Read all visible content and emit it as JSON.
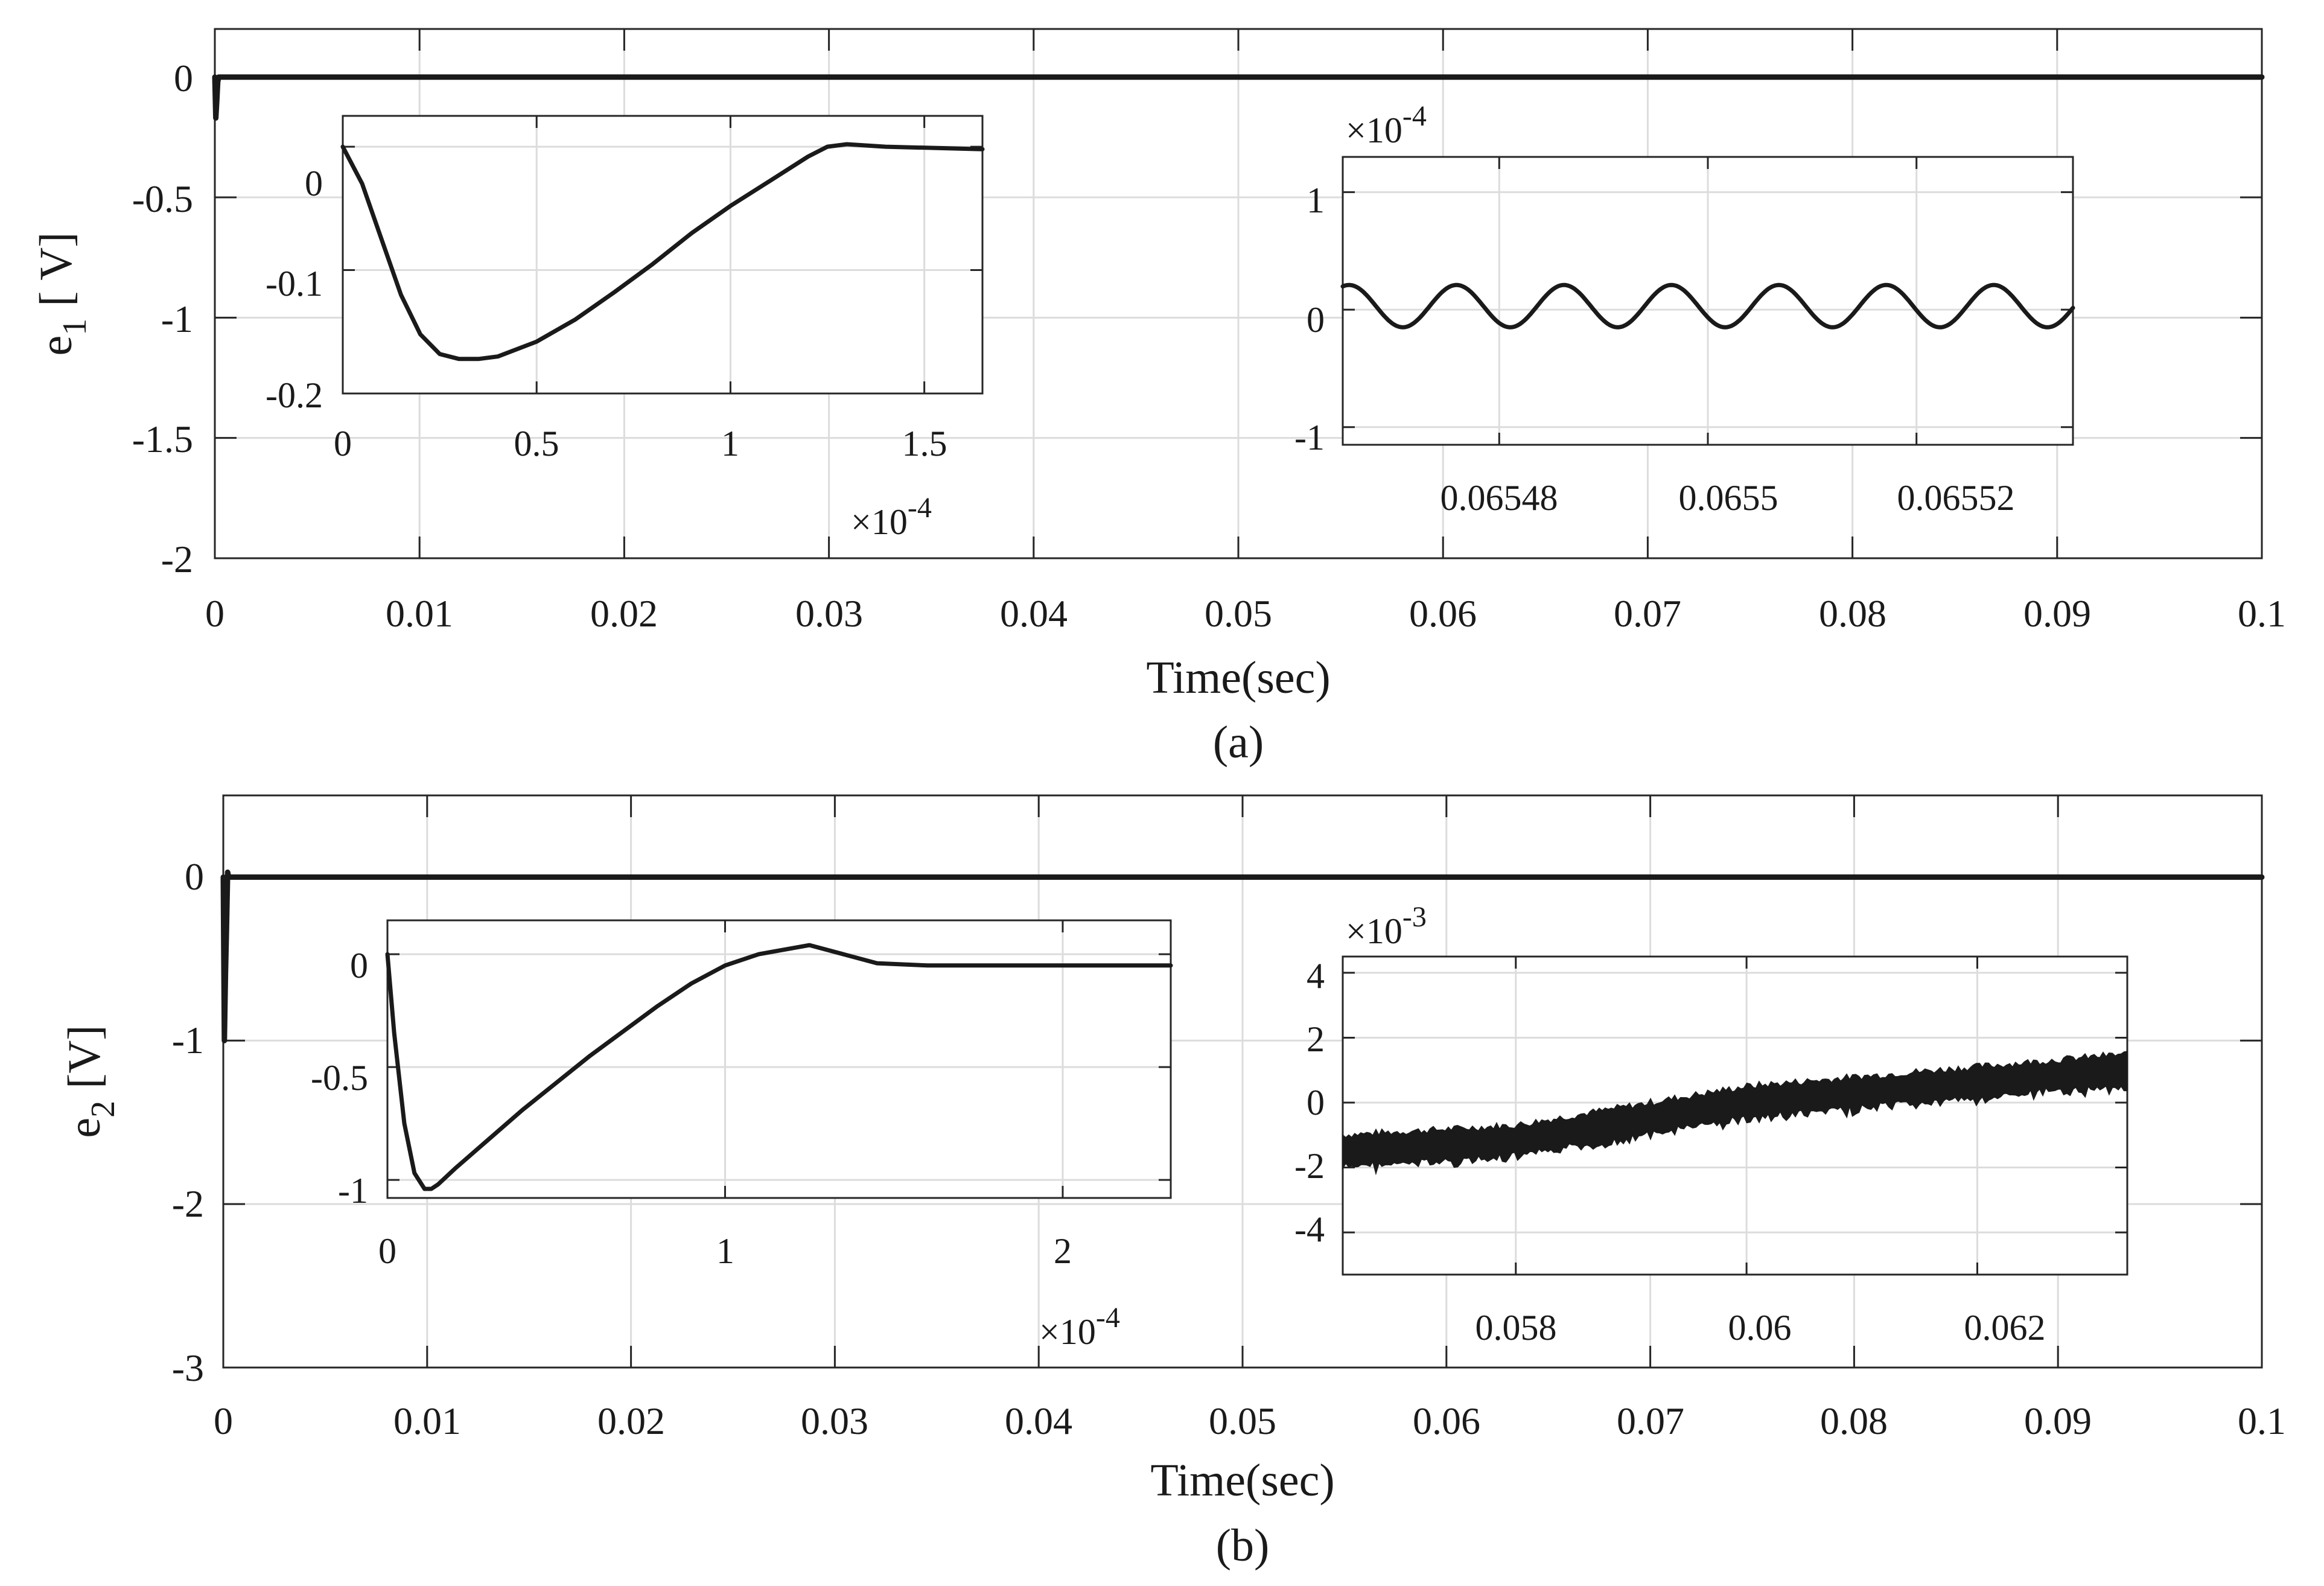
{
  "chart_data": [
    {
      "type": "line",
      "panel": "main",
      "caption": "(a)",
      "xlabel": "Time(sec)",
      "ylabel": {
        "base": "e",
        "sub": "1",
        "unit": "[ V]"
      },
      "xlim": [
        0,
        0.1
      ],
      "ylim": [
        -2,
        0.2
      ],
      "xticks": [
        0,
        0.01,
        0.02,
        0.03,
        0.04,
        0.05,
        0.06,
        0.07,
        0.08,
        0.09,
        0.1
      ],
      "xtick_labels": [
        "0",
        "0.01",
        "0.02",
        "0.03",
        "0.04",
        "0.05",
        "0.06",
        "0.07",
        "0.08",
        "0.09",
        "0.1"
      ],
      "yticks": [
        0,
        -0.5,
        -1,
        -1.5,
        -2
      ],
      "ytick_labels": [
        "0",
        "-0.5",
        "-1",
        "-1.5",
        "-2"
      ],
      "grid": true,
      "series": [
        {
          "name": "e1",
          "x": [
            0,
            3e-05,
            8e-05,
            0.00013,
            0.00016,
            0.0002,
            0.1
          ],
          "y": [
            0,
            -0.17,
            -0.1,
            -0.02,
            0,
            0,
            0
          ]
        }
      ]
    },
    {
      "type": "line",
      "panel": "inset-left",
      "xlim": [
        0,
        0.000165
      ],
      "ylim": [
        -0.2,
        0.025
      ],
      "xticks": [
        0,
        5e-05,
        0.0001,
        0.00015
      ],
      "xtick_labels": [
        "0",
        "0.5",
        "1",
        "1.5"
      ],
      "x_multiplier": {
        "base": "×10",
        "exp": "-4"
      },
      "yticks": [
        0,
        -0.1,
        -0.2
      ],
      "ytick_labels": [
        "0",
        "-0.1",
        "-0.2"
      ],
      "grid": true,
      "series": [
        {
          "name": "e1",
          "x": [
            0,
            5e-06,
            1e-05,
            1.5e-05,
            2e-05,
            2.5e-05,
            3e-05,
            3.5e-05,
            4e-05,
            5e-05,
            6e-05,
            7e-05,
            8e-05,
            9e-05,
            0.0001,
            0.00011,
            0.00012,
            0.000125,
            0.00013,
            0.00014,
            0.000165
          ],
          "y": [
            0,
            -0.03,
            -0.075,
            -0.12,
            -0.152,
            -0.168,
            -0.172,
            -0.172,
            -0.17,
            -0.158,
            -0.14,
            -0.118,
            -0.095,
            -0.07,
            -0.048,
            -0.028,
            -0.008,
            0,
            0.002,
            0,
            -0.002
          ]
        }
      ]
    },
    {
      "type": "line",
      "panel": "inset-right",
      "xlim": [
        0.065465,
        0.065535
      ],
      "ylim": [
        -1.15,
        1.3
      ],
      "xticks": [
        0.06548,
        0.0655,
        0.06552
      ],
      "xtick_labels": [
        "0.06548",
        "0.0655",
        "0.06552"
      ],
      "yticks": [
        1,
        0,
        -1
      ],
      "ytick_labels": [
        "1",
        "0",
        "-1"
      ],
      "y_multiplier": {
        "base": "×10",
        "exp": "-4"
      },
      "grid": true,
      "series": [
        {
          "name": "e1",
          "function": "sinusoid",
          "amplitude": 0.18,
          "offset": 0.03,
          "period": 1.03e-05
        }
      ]
    },
    {
      "type": "line",
      "panel": "main",
      "caption": "(b)",
      "xlabel": "Time(sec)",
      "ylabel": {
        "base": "e",
        "sub": "2",
        "unit": "[V]"
      },
      "xlim": [
        0,
        0.1
      ],
      "ylim": [
        -3,
        0.5
      ],
      "xticks": [
        0,
        0.01,
        0.02,
        0.03,
        0.04,
        0.05,
        0.06,
        0.07,
        0.08,
        0.09,
        0.1
      ],
      "xtick_labels": [
        "0",
        "0.01",
        "0.02",
        "0.03",
        "0.04",
        "0.05",
        "0.06",
        "0.07",
        "0.08",
        "0.09",
        "0.1"
      ],
      "yticks": [
        0,
        -1,
        -2,
        -3
      ],
      "ytick_labels": [
        "0",
        "-1",
        "-2",
        "-3"
      ],
      "grid": true,
      "series": [
        {
          "name": "e2",
          "x": [
            0,
            1e-05,
            3.5e-05,
            7e-05,
            0.000125,
            0.00015,
            0.0002,
            0.1
          ],
          "y": [
            0,
            -1.0,
            -0.6,
            -0.3,
            0.03,
            0,
            0,
            0
          ]
        }
      ]
    },
    {
      "type": "line",
      "panel": "inset-left",
      "xlim": [
        0,
        0.000232
      ],
      "ylim": [
        -1.08,
        0.15
      ],
      "xticks": [
        0,
        0.0001,
        0.0002
      ],
      "xtick_labels": [
        "0",
        "1",
        "2"
      ],
      "x_multiplier": {
        "base": "×10",
        "exp": "-4"
      },
      "yticks": [
        0,
        -0.5,
        -1
      ],
      "ytick_labels": [
        "0",
        "-0.5",
        "-1"
      ],
      "grid": true,
      "series": [
        {
          "name": "e2",
          "x": [
            0,
            2e-06,
            5e-06,
            8e-06,
            1.1e-05,
            1.3e-05,
            1.5e-05,
            2e-05,
            3e-05,
            4e-05,
            5e-05,
            6e-05,
            7e-05,
            8e-05,
            9e-05,
            0.0001,
            0.00011,
            0.000125,
            0.000135,
            0.000145,
            0.00016,
            0.0002,
            0.000232
          ],
          "y": [
            0,
            -0.35,
            -0.75,
            -0.97,
            -1.04,
            -1.04,
            -1.02,
            -0.95,
            -0.82,
            -0.69,
            -0.57,
            -0.45,
            -0.34,
            -0.23,
            -0.13,
            -0.05,
            0,
            0.04,
            0,
            -0.04,
            -0.05,
            -0.05,
            -0.05
          ]
        }
      ]
    },
    {
      "type": "line",
      "panel": "inset-right",
      "xlim": [
        0.0565,
        0.0633
      ],
      "ylim": [
        -5.3,
        4.5
      ],
      "xticks": [
        0.058,
        0.06,
        0.062
      ],
      "xtick_labels": [
        "0.058",
        "0.06",
        "0.062"
      ],
      "yticks": [
        4,
        2,
        0,
        -2,
        -4
      ],
      "ytick_labels": [
        "4",
        "2",
        "0",
        "-2",
        "-4"
      ],
      "y_multiplier": {
        "base": "×10",
        "exp": "-3"
      },
      "grid": true,
      "series": [
        {
          "name": "e2",
          "function": "noisy-ramp",
          "x": [
            0.0565,
            0.058,
            0.06,
            0.0633
          ],
          "y": [
            -1.5,
            -1.2,
            0,
            1.0
          ],
          "noise_band": 0.5
        }
      ]
    }
  ]
}
